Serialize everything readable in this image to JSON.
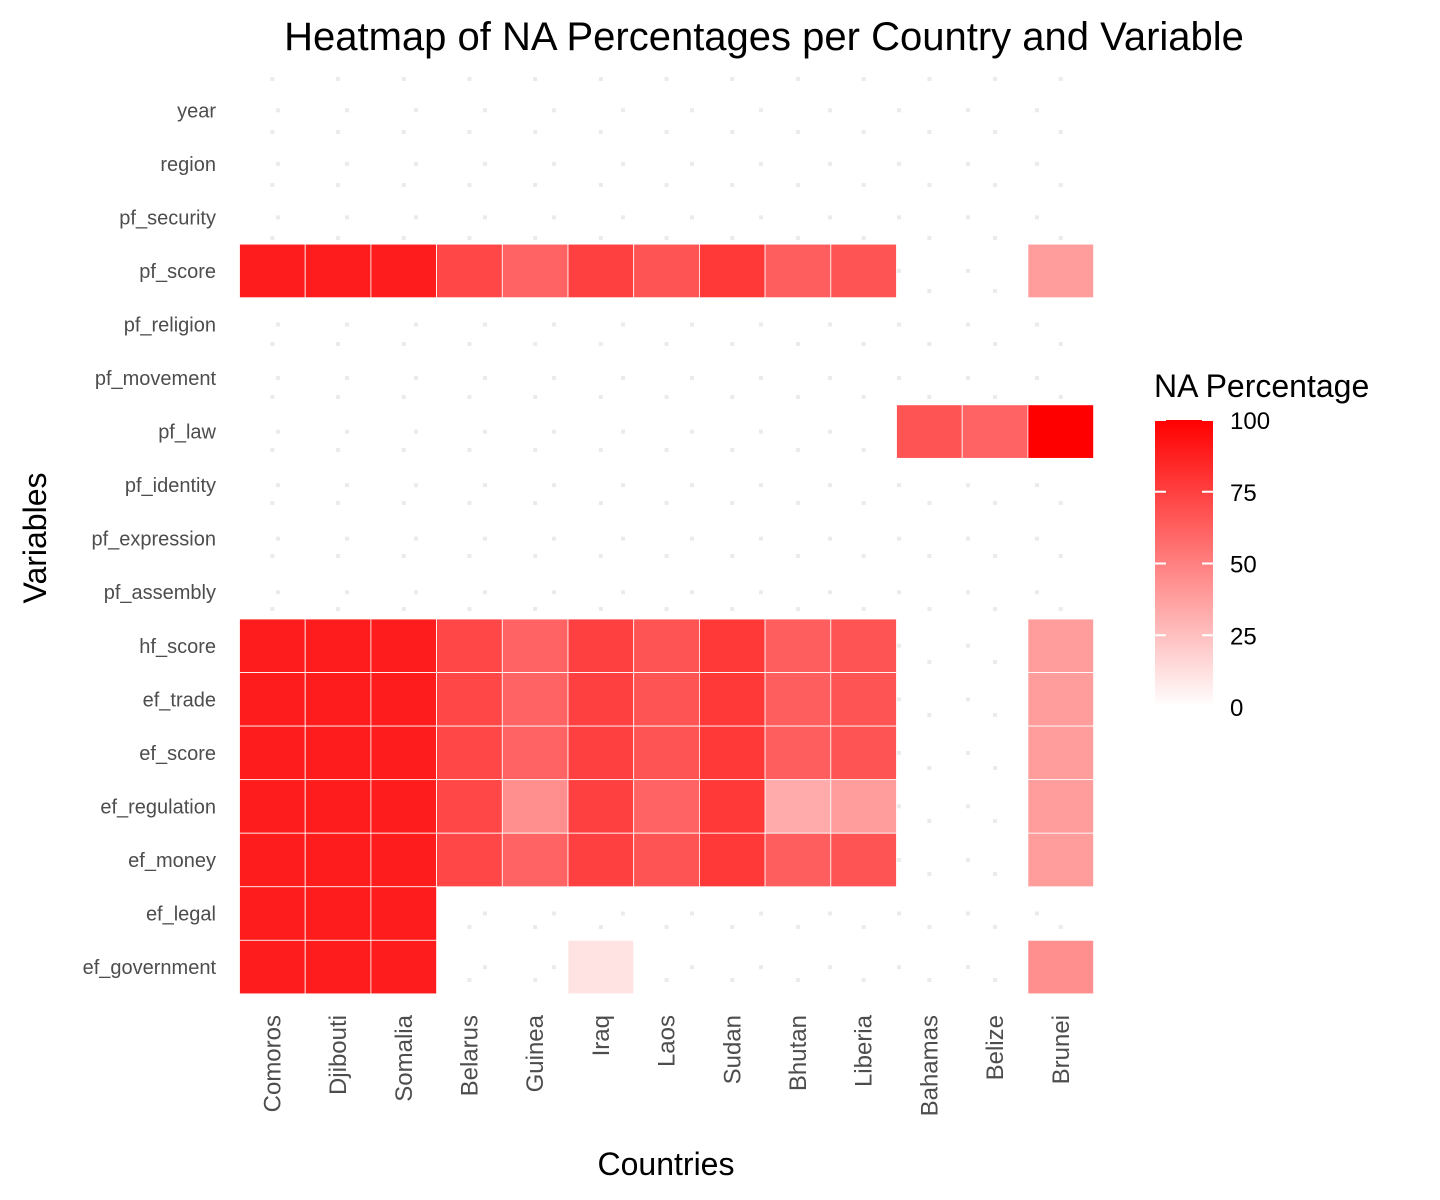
{
  "chart_data": {
    "type": "heatmap",
    "title": "Heatmap of NA Percentages per Country and Variable",
    "xlabel": "Countries",
    "ylabel": "Variables",
    "categories": [
      "Comoros",
      "Djibouti",
      "Somalia",
      "Belarus",
      "Guinea",
      "Iraq",
      "Laos",
      "Sudan",
      "Bhutan",
      "Liberia",
      "Bahamas",
      "Belize",
      "Brunei"
    ],
    "variables": [
      "year",
      "region",
      "pf_security",
      "pf_score",
      "pf_religion",
      "pf_movement",
      "pf_law",
      "pf_identity",
      "pf_expression",
      "pf_assembly",
      "hf_score",
      "ef_trade",
      "ef_score",
      "ef_regulation",
      "ef_money",
      "ef_legal",
      "ef_government"
    ],
    "values": [
      [
        0,
        0,
        0,
        0,
        0,
        0,
        0,
        0,
        0,
        0,
        0,
        0,
        0
      ],
      [
        0,
        0,
        0,
        0,
        0,
        0,
        0,
        0,
        0,
        0,
        0,
        0,
        0
      ],
      [
        0,
        0,
        0,
        0,
        0,
        0,
        0,
        0,
        0,
        0,
        0,
        0,
        0
      ],
      [
        89,
        89,
        89,
        72,
        61,
        75,
        67,
        78,
        63,
        67,
        0,
        0,
        39
      ],
      [
        0,
        0,
        0,
        0,
        0,
        0,
        0,
        0,
        0,
        0,
        0,
        0,
        0
      ],
      [
        0,
        0,
        0,
        0,
        0,
        0,
        0,
        0,
        0,
        0,
        0,
        0,
        0
      ],
      [
        0,
        0,
        0,
        0,
        0,
        0,
        0,
        0,
        0,
        0,
        67,
        61,
        100
      ],
      [
        0,
        0,
        0,
        0,
        0,
        0,
        0,
        0,
        0,
        0,
        0,
        0,
        0
      ],
      [
        0,
        0,
        0,
        0,
        0,
        0,
        0,
        0,
        0,
        0,
        0,
        0,
        0
      ],
      [
        0,
        0,
        0,
        0,
        0,
        0,
        0,
        0,
        0,
        0,
        0,
        0,
        0
      ],
      [
        89,
        89,
        89,
        72,
        61,
        75,
        67,
        78,
        63,
        67,
        0,
        0,
        39
      ],
      [
        89,
        89,
        89,
        72,
        61,
        75,
        67,
        78,
        63,
        67,
        0,
        0,
        39
      ],
      [
        89,
        89,
        89,
        72,
        61,
        75,
        67,
        78,
        63,
        67,
        0,
        0,
        39
      ],
      [
        89,
        89,
        89,
        72,
        44,
        75,
        61,
        78,
        33,
        39,
        0,
        0,
        39
      ],
      [
        89,
        89,
        89,
        72,
        61,
        75,
        67,
        78,
        63,
        67,
        0,
        0,
        39
      ],
      [
        89,
        89,
        89,
        0,
        0,
        0,
        0,
        0,
        0,
        0,
        0,
        0,
        0
      ],
      [
        89,
        89,
        89,
        0,
        0,
        11,
        0,
        0,
        0,
        0,
        0,
        0,
        44
      ]
    ],
    "legend": {
      "title": "NA Percentage",
      "ticks": [
        100,
        75,
        50,
        25,
        0
      ],
      "range": [
        0,
        100
      ],
      "placement": "right"
    },
    "colors": {
      "low": "#ffffff",
      "high": "#ff0000"
    },
    "grid": true
  }
}
